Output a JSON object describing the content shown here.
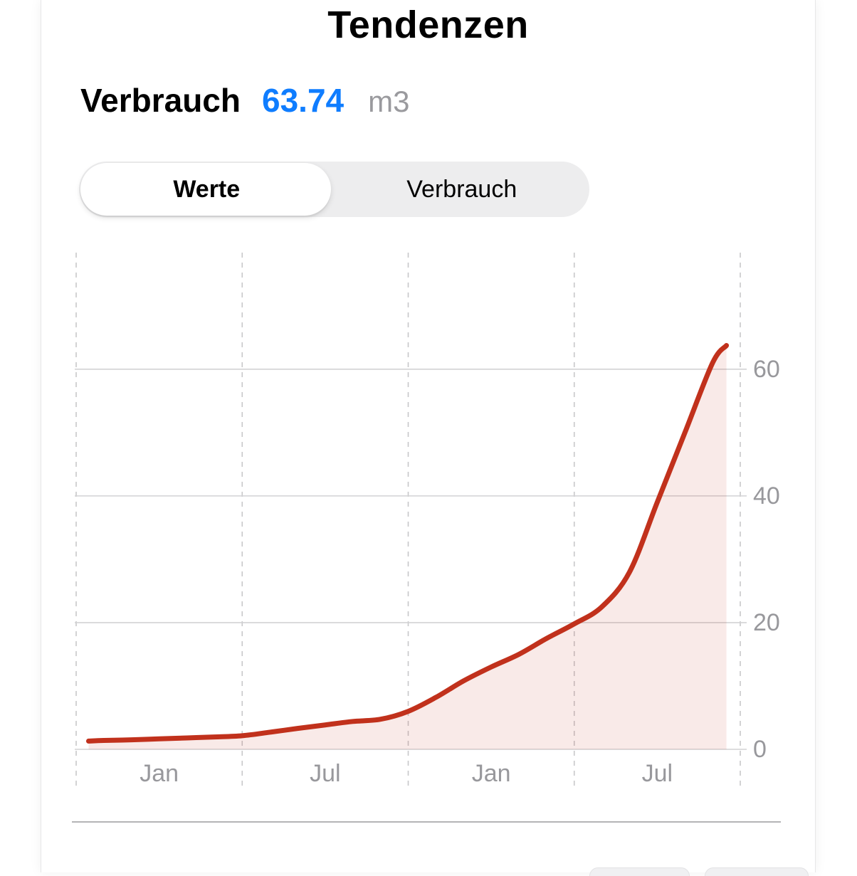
{
  "header": {
    "title": "Tendenzen"
  },
  "metric": {
    "label": "Verbrauch",
    "value": "63.74",
    "unit": "m3"
  },
  "segmented_control": {
    "segments": [
      {
        "label": "Werte",
        "selected": true
      },
      {
        "label": "Verbrauch",
        "selected": false
      }
    ]
  },
  "colors": {
    "line_red": "#c1311c",
    "area_fill": "rgba(193,49,28,0.10)",
    "value_blue": "#0f7dff",
    "tick_gray": "#98989c",
    "grid_solid": "#d2d2d4",
    "grid_dashed": "#c8c8ca"
  },
  "chart_data": {
    "type": "area",
    "title": "Verbrauch Tendenzen",
    "ylabel": "m3",
    "grid": {
      "horizontal": "solid",
      "vertical": "dashed"
    },
    "x_axis": {
      "unit": "month",
      "months_total": 24,
      "gridline_month_positions": [
        0,
        6,
        12,
        18,
        24
      ],
      "tick_labels": [
        "Jan",
        "Jul",
        "Jan",
        "Jul"
      ]
    },
    "y_axis": {
      "side": "right",
      "tick_values": [
        0,
        20,
        40,
        60
      ],
      "max": 78.4
    },
    "series": [
      {
        "name": "Verbrauch",
        "unit": "m3",
        "points": [
          [
            0.45,
            1.3
          ],
          [
            1,
            1.4
          ],
          [
            2,
            1.5
          ],
          [
            3,
            1.65
          ],
          [
            4,
            1.8
          ],
          [
            5,
            1.95
          ],
          [
            6,
            2.15
          ],
          [
            7,
            2.7
          ],
          [
            8,
            3.3
          ],
          [
            9,
            3.85
          ],
          [
            10,
            4.4
          ],
          [
            11,
            4.75
          ],
          [
            12,
            6.0
          ],
          [
            13,
            8.2
          ],
          [
            14,
            10.8
          ],
          [
            15,
            13.0
          ],
          [
            16,
            15.0
          ],
          [
            17,
            17.5
          ],
          [
            18,
            19.8
          ],
          [
            19,
            22.5
          ],
          [
            20,
            28.0
          ],
          [
            21,
            39.0
          ],
          [
            22,
            50.0
          ],
          [
            23,
            61.0
          ],
          [
            23.5,
            63.74
          ]
        ]
      }
    ]
  }
}
